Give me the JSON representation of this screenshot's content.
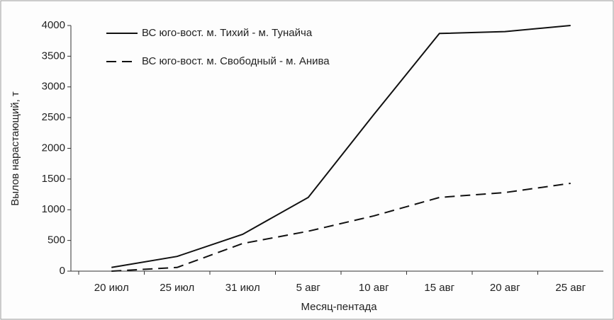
{
  "chart_data": {
    "type": "line",
    "x_label": "Месяц-пентада",
    "y_label": "Вылов нарастающий, т",
    "categories": [
      "20 июл",
      "25 июл",
      "31 июл",
      "5 авг",
      "10 авг",
      "15 авг",
      "20 авг",
      "25 авг"
    ],
    "series": [
      {
        "name": "ВС юго-вост. м. Тихий - м. Тунайча",
        "color": "#111111",
        "dash": "solid",
        "values": [
          60,
          240,
          600,
          1200,
          2550,
          3870,
          3900,
          4000
        ]
      },
      {
        "name": "ВС юго-вост. м. Свободный - м. Анива",
        "color": "#111111",
        "dash": "dashed",
        "values": [
          0,
          60,
          450,
          650,
          900,
          1200,
          1280,
          1430
        ]
      }
    ],
    "ylim": [
      0,
      4000
    ],
    "yticks": [
      0,
      500,
      1000,
      1500,
      2000,
      2500,
      3000,
      3500,
      4000
    ],
    "grid": false,
    "legend": "upper left"
  }
}
